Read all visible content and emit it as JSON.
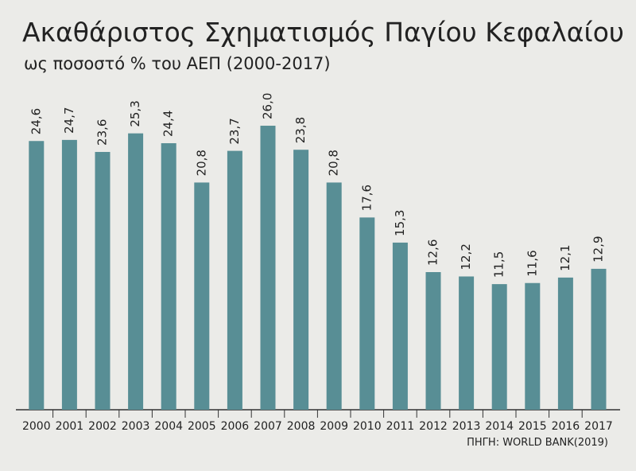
{
  "chart_data": {
    "type": "bar",
    "title": "Ακαθάριστος Σχηματισμός Παγίου Κεφαλαίου",
    "subtitle": "ως ποσοστό % του ΑΕΠ (2000-2017)",
    "source": "ΠΗΓΗ: WORLD BANK(2019)",
    "categories": [
      "2000",
      "2001",
      "2002",
      "2003",
      "2004",
      "2005",
      "2006",
      "2007",
      "2008",
      "2009",
      "2010",
      "2011",
      "2012",
      "2013",
      "2014",
      "2015",
      "2016",
      "2017"
    ],
    "values": [
      24.6,
      24.7,
      23.6,
      25.3,
      24.4,
      20.8,
      23.7,
      26.0,
      23.8,
      20.8,
      17.6,
      15.3,
      12.6,
      12.2,
      11.5,
      11.6,
      12.1,
      12.9
    ],
    "value_labels": [
      "24,6",
      "24,7",
      "23,6",
      "25,3",
      "24,4",
      "20,8",
      "23,7",
      "26,0",
      "23,8",
      "20,8",
      "17,6",
      "15,3",
      "12,6",
      "12,2",
      "11,5",
      "11,6",
      "12,1",
      "12,9"
    ],
    "color": "#588e95"
  }
}
